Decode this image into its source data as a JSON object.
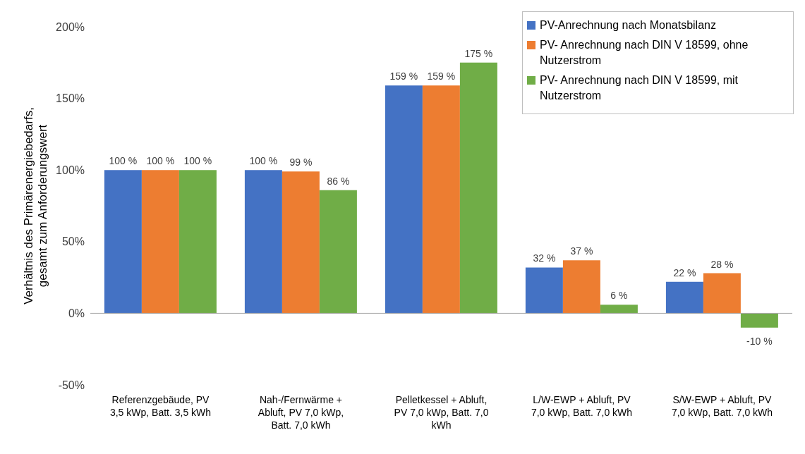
{
  "chart_data": {
    "type": "bar",
    "ylabel": "Verhältnis des Primärenergiebedarfs, gesamt zum Anforderungswert",
    "categories": [
      "Referenzgebäude, PV 3,5 kWp, Batt. 3,5 kWh",
      "Nah-/Fernwärme + Abluft, PV 7,0 kWp, Batt. 7,0 kWh",
      "Pelletkessel + Abluft, PV 7,0 kWp, Batt. 7,0 kWh",
      "L/W-EWP + Abluft, PV 7,0 kWp, Batt. 7,0 kWh",
      "S/W-EWP + Abluft, PV 7,0 kWp, Batt. 7,0 kWh"
    ],
    "series": [
      {
        "name": "PV-Anrechnung nach Monatsbilanz",
        "color": "#4472c4",
        "values": [
          100,
          100,
          159,
          32,
          22
        ],
        "value_labels": [
          "100 %",
          "100 %",
          "159 %",
          "32 %",
          "22 %"
        ]
      },
      {
        "name": "PV- Anrechnung nach DIN V 18599, ohne Nutzerstrom",
        "color": "#ed7d31",
        "values": [
          100,
          99,
          159,
          37,
          28
        ],
        "value_labels": [
          "100 %",
          "99 %",
          "159 %",
          "37 %",
          "28 %"
        ]
      },
      {
        "name": "PV- Anrechnung nach DIN V 18599, mit Nutzerstrom",
        "color": "#70ad47",
        "values": [
          100,
          86,
          175,
          6,
          -10
        ],
        "value_labels": [
          "100 %",
          "86 %",
          "175 %",
          "6 %",
          "-10 %"
        ]
      }
    ],
    "ylim": [
      -50,
      200
    ],
    "yticks": [
      {
        "value": -50,
        "label": "-50%"
      },
      {
        "value": 0,
        "label": "0%"
      },
      {
        "value": 50,
        "label": "50%"
      },
      {
        "value": 100,
        "label": "100%"
      },
      {
        "value": 150,
        "label": "150%"
      },
      {
        "value": 200,
        "label": "200%"
      }
    ],
    "grid": false,
    "legend": "top right",
    "ref_lines": [
      {
        "axis": "y",
        "value": 0,
        "color": "#a6a6a6"
      }
    ]
  }
}
